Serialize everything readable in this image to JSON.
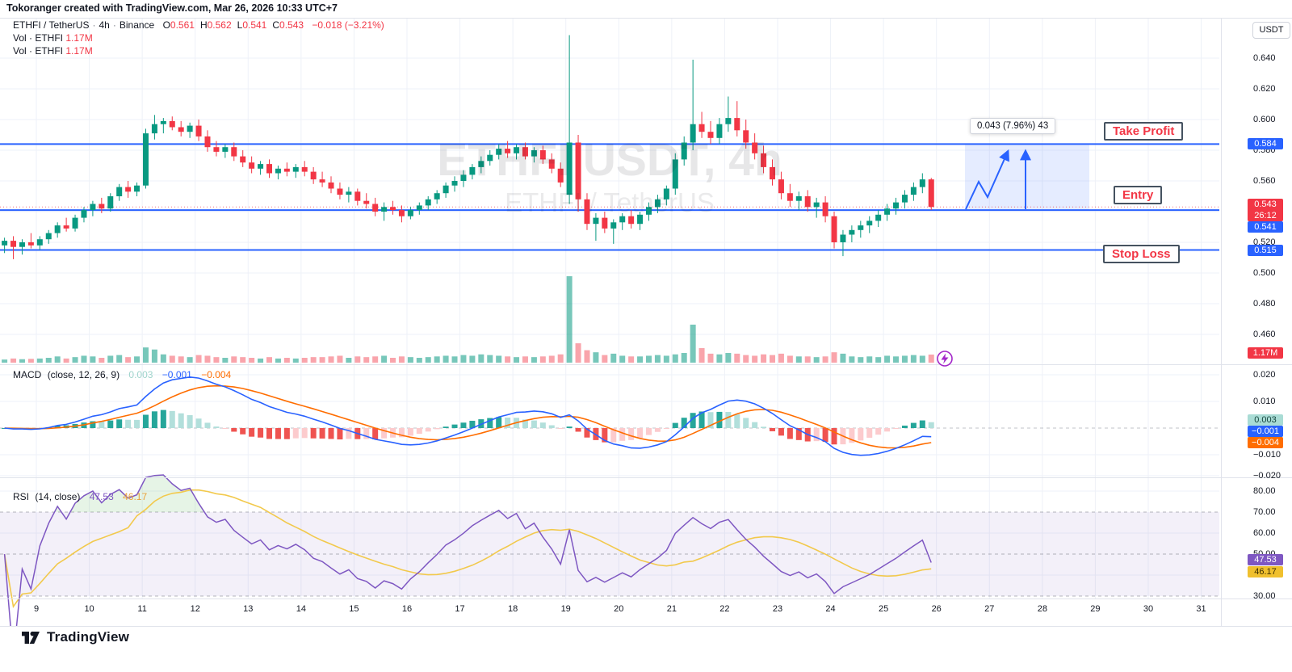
{
  "header": {
    "credit": "Tokoranger created with TradingView.com, Mar 26, 2026 10:33 UTC+7"
  },
  "legend": {
    "symbol": "ETHFI / TetherUS",
    "interval": "4h",
    "exchange": "Binance",
    "ohlc": [
      {
        "k": "O",
        "v": "0.561"
      },
      {
        "k": "H",
        "v": "0.562"
      },
      {
        "k": "L",
        "v": "0.541"
      },
      {
        "k": "C",
        "v": "0.543"
      }
    ],
    "change": "−0.018 (−3.21%)",
    "vol_rows": [
      {
        "label": "Vol · ETHFI",
        "value": "1.17M"
      },
      {
        "label": "Vol · ETHFI",
        "value": "1.17M"
      }
    ]
  },
  "indicators": {
    "macd": {
      "title": "MACD",
      "params": "(close, 12, 26, 9)",
      "values": [
        "0.003",
        "−0.001",
        "−0.004"
      ]
    },
    "rsi": {
      "title": "RSI",
      "params": "(14, close)",
      "values": [
        "47.53",
        "46.17"
      ]
    }
  },
  "watermark": {
    "line1": "ETHFI USDT, 4h",
    "line2": "ETHFI / TetherUS"
  },
  "annotations": {
    "take_profit": "Take Profit",
    "entry": "Entry",
    "stop_loss": "Stop Loss",
    "tooltip": "0.043 (7.96%) 43"
  },
  "branding": {
    "name": "TradingView"
  },
  "axis": {
    "currency": "USDT",
    "price_ticks": [
      {
        "label": "0.640",
        "value": 0.64
      },
      {
        "label": "0.620",
        "value": 0.62
      },
      {
        "label": "0.600",
        "value": 0.6
      },
      {
        "label": "0.580",
        "value": 0.58
      },
      {
        "label": "0.560",
        "value": 0.56
      },
      {
        "label": "0.520",
        "value": 0.52
      },
      {
        "label": "0.500",
        "value": 0.5
      },
      {
        "label": "0.480",
        "value": 0.48
      },
      {
        "label": "0.460",
        "value": 0.46
      }
    ],
    "macd_ticks": [
      {
        "label": "0.020",
        "value": 0.02
      },
      {
        "label": "0.010",
        "value": 0.01
      },
      {
        "label": "−0.010",
        "value": -0.01
      },
      {
        "label": "−0.020",
        "value": -0.02
      }
    ],
    "rsi_ticks": [
      {
        "label": "80.00",
        "value": 80
      },
      {
        "label": "70.00",
        "value": 70
      },
      {
        "label": "60.00",
        "value": 60
      },
      {
        "label": "50.00",
        "value": 50
      },
      {
        "label": "40.00",
        "value": 40
      },
      {
        "label": "30.00",
        "value": 30
      }
    ],
    "badges": [
      {
        "id": "take-profit-price",
        "label": "0.584",
        "bg": "#2962FF",
        "fg": "#ffffff"
      },
      {
        "id": "last-price",
        "label": "0.543",
        "sub": "26:12",
        "bg": "#F23645",
        "fg": "#ffffff"
      },
      {
        "id": "entry-price",
        "label": "0.541",
        "bg": "#2962FF",
        "fg": "#ffffff"
      },
      {
        "id": "stop-loss-price",
        "label": "0.515",
        "bg": "#2962FF",
        "fg": "#ffffff"
      },
      {
        "id": "volume-value",
        "label": "1.17M",
        "bg": "#F23645",
        "fg": "#ffffff"
      },
      {
        "id": "macd-hist",
        "label": "0.003",
        "bg": "#A9DCD5",
        "fg": "#14443d"
      },
      {
        "id": "macd-line",
        "label": "−0.001",
        "bg": "#2962FF",
        "fg": "#ffffff"
      },
      {
        "id": "macd-signal",
        "label": "−0.004",
        "bg": "#FF6D00",
        "fg": "#ffffff"
      },
      {
        "id": "rsi-value",
        "label": "47.53",
        "bg": "#7E57C2",
        "fg": "#ffffff"
      },
      {
        "id": "rsi-ma",
        "label": "46.17",
        "bg": "#F0C02E",
        "fg": "#3d2f00"
      }
    ],
    "dates": [
      "9",
      "10",
      "11",
      "12",
      "13",
      "14",
      "15",
      "16",
      "17",
      "18",
      "19",
      "20",
      "21",
      "22",
      "23",
      "24",
      "25",
      "26",
      "27",
      "28",
      "29",
      "30",
      "31"
    ]
  },
  "colors": {
    "up": "#089981",
    "down": "#F23645",
    "accent_blue": "#2962FF",
    "macd_line": "#2962FF",
    "macd_signal": "#FF6D00",
    "hist_pos_grow": "#26A69A",
    "hist_pos_fall": "#B2DFDB",
    "hist_neg_grow": "#EF5350",
    "hist_neg_fall": "#FCCBCD",
    "rsi_line": "#7E57C2",
    "rsi_ma": "#F2C94C",
    "rsi_band": "rgba(126,87,194,0.09)",
    "vol_up": "rgba(8,153,129,0.55)",
    "vol_down": "rgba(242,54,69,0.45)",
    "grid": "#EEF1F8",
    "separator": "#E0E3EB"
  },
  "chart_data": {
    "type": "candlestick+volume+macd+rsi",
    "title": "ETHFI / TetherUS · 4h · Binance",
    "interval": "4h",
    "ohlc_display": {
      "open": 0.561,
      "high": 0.562,
      "low": 0.541,
      "close": 0.543,
      "change": -0.018,
      "change_pct": -3.21
    },
    "levels": {
      "take_profit": 0.584,
      "entry": 0.541,
      "stop_loss": 0.515,
      "last_price": 0.543,
      "countdown": "26:12"
    },
    "measure": {
      "value": 0.043,
      "percent": 7.96,
      "bars": 43
    },
    "price_axis_range": [
      0.46,
      0.64
    ],
    "macd_display": {
      "hist": 0.003,
      "macd": -0.001,
      "signal": -0.004
    },
    "rsi_display": {
      "rsi": 47.53,
      "ma": 46.17
    },
    "x_dates": [
      9,
      10,
      11,
      12,
      13,
      14,
      15,
      16,
      17,
      18,
      19,
      20,
      21,
      22,
      23,
      24,
      25,
      26,
      27,
      28,
      29,
      30,
      31
    ],
    "volume_last_label": "1.17M",
    "candles": [
      [
        0.518,
        0.523,
        0.513,
        0.521
      ],
      [
        0.521,
        0.524,
        0.509,
        0.517
      ],
      [
        0.517,
        0.522,
        0.512,
        0.52
      ],
      [
        0.52,
        0.526,
        0.516,
        0.518
      ],
      [
        0.518,
        0.524,
        0.515,
        0.522
      ],
      [
        0.522,
        0.528,
        0.519,
        0.526
      ],
      [
        0.526,
        0.533,
        0.523,
        0.531
      ],
      [
        0.531,
        0.536,
        0.527,
        0.529
      ],
      [
        0.529,
        0.538,
        0.527,
        0.536
      ],
      [
        0.536,
        0.543,
        0.533,
        0.541
      ],
      [
        0.541,
        0.547,
        0.537,
        0.545
      ],
      [
        0.545,
        0.549,
        0.539,
        0.542
      ],
      [
        0.542,
        0.552,
        0.54,
        0.55
      ],
      [
        0.55,
        0.558,
        0.547,
        0.556
      ],
      [
        0.556,
        0.56,
        0.549,
        0.553
      ],
      [
        0.553,
        0.559,
        0.55,
        0.557
      ],
      [
        0.557,
        0.594,
        0.555,
        0.591
      ],
      [
        0.591,
        0.603,
        0.587,
        0.597
      ],
      [
        0.597,
        0.601,
        0.591,
        0.599
      ],
      [
        0.599,
        0.602,
        0.593,
        0.595
      ],
      [
        0.595,
        0.599,
        0.589,
        0.592
      ],
      [
        0.592,
        0.598,
        0.588,
        0.596
      ],
      [
        0.596,
        0.6,
        0.586,
        0.589
      ],
      [
        0.589,
        0.593,
        0.579,
        0.582
      ],
      [
        0.582,
        0.586,
        0.576,
        0.579
      ],
      [
        0.579,
        0.584,
        0.575,
        0.582
      ],
      [
        0.582,
        0.585,
        0.573,
        0.576
      ],
      [
        0.576,
        0.58,
        0.569,
        0.572
      ],
      [
        0.572,
        0.576,
        0.565,
        0.568
      ],
      [
        0.568,
        0.573,
        0.564,
        0.571
      ],
      [
        0.571,
        0.574,
        0.562,
        0.565
      ],
      [
        0.565,
        0.57,
        0.561,
        0.568
      ],
      [
        0.568,
        0.572,
        0.563,
        0.566
      ],
      [
        0.566,
        0.571,
        0.562,
        0.569
      ],
      [
        0.569,
        0.573,
        0.563,
        0.566
      ],
      [
        0.566,
        0.569,
        0.558,
        0.561
      ],
      [
        0.561,
        0.566,
        0.556,
        0.559
      ],
      [
        0.559,
        0.563,
        0.552,
        0.555
      ],
      [
        0.555,
        0.559,
        0.548,
        0.551
      ],
      [
        0.551,
        0.556,
        0.546,
        0.553
      ],
      [
        0.553,
        0.555,
        0.544,
        0.547
      ],
      [
        0.547,
        0.552,
        0.542,
        0.545
      ],
      [
        0.545,
        0.549,
        0.537,
        0.54
      ],
      [
        0.54,
        0.546,
        0.534,
        0.543
      ],
      [
        0.543,
        0.547,
        0.538,
        0.541
      ],
      [
        0.541,
        0.544,
        0.533,
        0.537
      ],
      [
        0.537,
        0.543,
        0.535,
        0.541
      ],
      [
        0.541,
        0.546,
        0.538,
        0.544
      ],
      [
        0.544,
        0.55,
        0.541,
        0.548
      ],
      [
        0.548,
        0.554,
        0.545,
        0.552
      ],
      [
        0.552,
        0.559,
        0.549,
        0.557
      ],
      [
        0.557,
        0.563,
        0.553,
        0.56
      ],
      [
        0.56,
        0.567,
        0.556,
        0.564
      ],
      [
        0.564,
        0.571,
        0.561,
        0.569
      ],
      [
        0.569,
        0.576,
        0.565,
        0.573
      ],
      [
        0.573,
        0.58,
        0.57,
        0.577
      ],
      [
        0.577,
        0.584,
        0.574,
        0.581
      ],
      [
        0.581,
        0.586,
        0.575,
        0.578
      ],
      [
        0.578,
        0.584,
        0.574,
        0.582
      ],
      [
        0.582,
        0.585,
        0.574,
        0.576
      ],
      [
        0.576,
        0.582,
        0.572,
        0.58
      ],
      [
        0.58,
        0.583,
        0.571,
        0.574
      ],
      [
        0.574,
        0.578,
        0.565,
        0.568
      ],
      [
        0.568,
        0.572,
        0.556,
        0.559
      ],
      [
        0.551,
        0.655,
        0.545,
        0.585
      ],
      [
        0.585,
        0.59,
        0.54,
        0.548
      ],
      [
        0.548,
        0.552,
        0.528,
        0.532
      ],
      [
        0.532,
        0.539,
        0.521,
        0.536
      ],
      [
        0.536,
        0.54,
        0.526,
        0.529
      ],
      [
        0.529,
        0.535,
        0.519,
        0.533
      ],
      [
        0.533,
        0.539,
        0.528,
        0.537
      ],
      [
        0.537,
        0.541,
        0.529,
        0.532
      ],
      [
        0.532,
        0.54,
        0.528,
        0.538
      ],
      [
        0.538,
        0.546,
        0.534,
        0.543
      ],
      [
        0.543,
        0.551,
        0.539,
        0.548
      ],
      [
        0.548,
        0.557,
        0.544,
        0.555
      ],
      [
        0.555,
        0.578,
        0.551,
        0.574
      ],
      [
        0.574,
        0.589,
        0.57,
        0.585
      ],
      [
        0.585,
        0.639,
        0.58,
        0.597
      ],
      [
        0.597,
        0.605,
        0.588,
        0.592
      ],
      [
        0.592,
        0.599,
        0.584,
        0.588
      ],
      [
        0.588,
        0.601,
        0.584,
        0.597
      ],
      [
        0.597,
        0.615,
        0.592,
        0.601
      ],
      [
        0.601,
        0.612,
        0.589,
        0.593
      ],
      [
        0.593,
        0.6,
        0.581,
        0.585
      ],
      [
        0.585,
        0.591,
        0.574,
        0.578
      ],
      [
        0.578,
        0.583,
        0.565,
        0.569
      ],
      [
        0.569,
        0.574,
        0.557,
        0.561
      ],
      [
        0.561,
        0.566,
        0.548,
        0.552
      ],
      [
        0.552,
        0.558,
        0.543,
        0.547
      ],
      [
        0.547,
        0.553,
        0.541,
        0.55
      ],
      [
        0.55,
        0.554,
        0.54,
        0.543
      ],
      [
        0.543,
        0.549,
        0.536,
        0.546
      ],
      [
        0.546,
        0.55,
        0.533,
        0.537
      ],
      [
        0.537,
        0.54,
        0.516,
        0.52
      ],
      [
        0.52,
        0.528,
        0.511,
        0.525
      ],
      [
        0.525,
        0.531,
        0.52,
        0.528
      ],
      [
        0.528,
        0.534,
        0.523,
        0.531
      ],
      [
        0.531,
        0.537,
        0.526,
        0.534
      ],
      [
        0.534,
        0.541,
        0.53,
        0.538
      ],
      [
        0.538,
        0.545,
        0.534,
        0.542
      ],
      [
        0.542,
        0.549,
        0.538,
        0.546
      ],
      [
        0.546,
        0.554,
        0.542,
        0.551
      ],
      [
        0.551,
        0.559,
        0.547,
        0.556
      ],
      [
        0.556,
        0.565,
        0.552,
        0.561
      ],
      [
        0.561,
        0.562,
        0.541,
        0.543
      ]
    ],
    "volumes_m": [
      0.45,
      0.6,
      0.5,
      0.55,
      0.6,
      0.7,
      0.9,
      0.6,
      0.8,
      1.0,
      0.9,
      0.7,
      1.0,
      1.1,
      0.8,
      0.9,
      2.2,
      1.9,
      1.2,
      1.0,
      0.9,
      0.8,
      1.1,
      1.0,
      0.8,
      0.7,
      0.9,
      0.8,
      0.7,
      0.6,
      0.8,
      0.6,
      0.7,
      0.6,
      0.7,
      0.8,
      0.8,
      0.9,
      1.0,
      0.7,
      0.9,
      0.8,
      0.9,
      1.0,
      0.7,
      0.9,
      0.8,
      0.7,
      0.8,
      0.9,
      1.0,
      0.9,
      1.1,
      1.0,
      1.2,
      1.1,
      1.0,
      0.9,
      0.8,
      0.9,
      0.8,
      0.9,
      1.0,
      1.2,
      12.5,
      2.8,
      1.8,
      1.5,
      1.1,
      1.3,
      1.0,
      0.9,
      0.9,
      1.0,
      1.1,
      1.0,
      1.2,
      1.4,
      5.5,
      2.1,
      1.3,
      1.2,
      1.4,
      1.3,
      1.1,
      1.0,
      1.2,
      1.1,
      1.3,
      1.0,
      0.9,
      0.9,
      0.8,
      0.9,
      1.5,
      1.3,
      0.9,
      0.8,
      0.9,
      0.8,
      1.0,
      0.9,
      1.0,
      1.1,
      1.0,
      1.17
    ]
  }
}
